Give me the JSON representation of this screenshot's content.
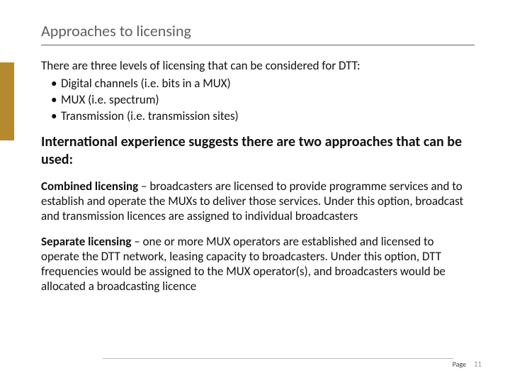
{
  "title": "Approaches to licensing",
  "accent_color": "#b58a2e",
  "intro": "There are three levels of licensing that can be considered for DTT:",
  "bullets": [
    "Digital channels (i.e. bits in a MUX)",
    "MUX (i.e. spectrum)",
    "Transmission (i.e. transmission sites)"
  ],
  "subheading": "International experience suggests there are two approaches that can be used:",
  "paragraphs": [
    {
      "lead": "Combined licensing",
      "body": " – broadcasters are licensed to provide programme services and to establish and operate the MUXs to deliver those services. Under this option, broadcast and transmission licences are assigned to individual broadcasters"
    },
    {
      "lead": "Separate licensing",
      "body": " – one or more MUX operators are established and licensed to operate the DTT network, leasing capacity to broadcasters. Under this option, DTT frequencies would be assigned to the MUX operator(s), and broadcasters would be allocated a broadcasting licence"
    }
  ],
  "footer": {
    "page_label": "Page",
    "page_number": "11"
  }
}
